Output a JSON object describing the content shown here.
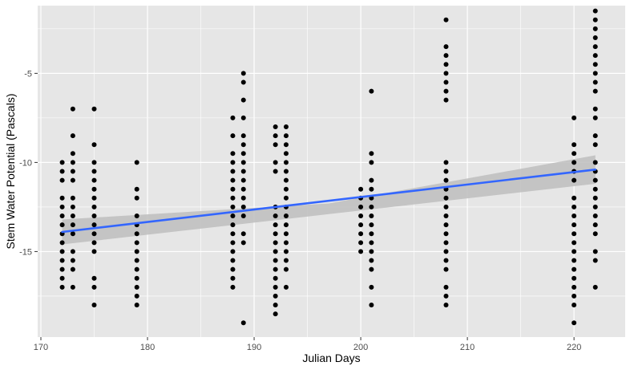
{
  "chart_data": {
    "type": "scatter",
    "xlabel": "Julian Days",
    "ylabel": "Stem Water Potential (Pascals)",
    "xlim": [
      169.7,
      224.8
    ],
    "ylim": [
      -19.8,
      -1.2
    ],
    "x_ticks": [
      170,
      180,
      190,
      200,
      210,
      220
    ],
    "y_ticks": [
      -5,
      -10,
      -15
    ],
    "grid": true,
    "colors": {
      "panel": "#e6e6e6",
      "grid": "#ffffff",
      "points": "#000000",
      "fit_line": "#3366ff",
      "ribbon": "#bdbdbd"
    },
    "fit_line": {
      "x": [
        172,
        222
      ],
      "y": [
        -13.9,
        -10.4
      ]
    },
    "confidence_band": {
      "x": [
        172,
        197,
        222
      ],
      "lower": [
        -14.6,
        -12.9,
        -11.2
      ],
      "upper": [
        -13.2,
        -12.3,
        -9.6
      ]
    },
    "series": [
      {
        "x": 172,
        "values": [
          -10,
          -10.5,
          -11,
          -12,
          -12.5,
          -13,
          -13.5,
          -14,
          -14.5,
          -15,
          -15.5,
          -16,
          -16.5,
          -17
        ]
      },
      {
        "x": 173,
        "values": [
          -7,
          -8.5,
          -9.5,
          -10,
          -10.5,
          -11,
          -12,
          -12.5,
          -13,
          -13.5,
          -14,
          -15,
          -15.5,
          -16,
          -17
        ]
      },
      {
        "x": 175,
        "values": [
          -7,
          -9,
          -10,
          -10.5,
          -11,
          -11.5,
          -12,
          -12.5,
          -13,
          -13.5,
          -14,
          -14.5,
          -15,
          -16.5,
          -17,
          -18
        ]
      },
      {
        "x": 179,
        "values": [
          -10,
          -11.5,
          -12,
          -13,
          -13.5,
          -14,
          -14.5,
          -15,
          -15.5,
          -16,
          -16.5,
          -17,
          -17.5,
          -18
        ]
      },
      {
        "x": 188,
        "values": [
          -7.5,
          -8.5,
          -9.5,
          -10,
          -10.5,
          -11,
          -11.5,
          -12,
          -12.5,
          -13,
          -13.5,
          -14,
          -14.5,
          -15,
          -15.5,
          -16,
          -16.5,
          -17
        ]
      },
      {
        "x": 189,
        "values": [
          -5,
          -5.5,
          -6.5,
          -7.5,
          -8.5,
          -9,
          -9.5,
          -10,
          -10.5,
          -11,
          -11.5,
          -12,
          -12.5,
          -13,
          -14,
          -14.5,
          -19
        ]
      },
      {
        "x": 192,
        "values": [
          -8,
          -8.5,
          -9,
          -10,
          -10.5,
          -12.5,
          -13,
          -13.5,
          -14,
          -14.5,
          -15,
          -15.5,
          -16,
          -16.5,
          -17,
          -17.5,
          -18,
          -18.5
        ]
      },
      {
        "x": 193,
        "values": [
          -8,
          -8.5,
          -9,
          -9.5,
          -10,
          -10.5,
          -11,
          -11.5,
          -12,
          -12.5,
          -13,
          -13.5,
          -14,
          -14.5,
          -15,
          -15.5,
          -16,
          -17
        ]
      },
      {
        "x": 200,
        "values": [
          -11.5,
          -12,
          -12.5,
          -13,
          -13.5,
          -14,
          -14.5,
          -15
        ]
      },
      {
        "x": 201,
        "values": [
          -6,
          -9.5,
          -10,
          -11,
          -11.5,
          -12,
          -12.5,
          -13,
          -13.5,
          -14,
          -14.5,
          -15,
          -15.5,
          -16,
          -17,
          -18
        ]
      },
      {
        "x": 208,
        "values": [
          -2,
          -3.5,
          -4,
          -4.5,
          -5,
          -5.5,
          -6,
          -6.5,
          -10,
          -10.5,
          -11,
          -11.5,
          -12,
          -12.5,
          -13,
          -13.5,
          -14,
          -14.5,
          -15,
          -15.5,
          -16,
          -17,
          -17.5,
          -18
        ]
      },
      {
        "x": 220,
        "values": [
          -7.5,
          -9,
          -9.5,
          -10,
          -10.5,
          -11,
          -12,
          -12.5,
          -13,
          -13.5,
          -14,
          -14.5,
          -15,
          -15.5,
          -16,
          -16.5,
          -17,
          -17.5,
          -18,
          -19
        ]
      },
      {
        "x": 222,
        "values": [
          -1.5,
          -2,
          -2.5,
          -3,
          -3.5,
          -4,
          -4.5,
          -5,
          -5.5,
          -6,
          -7,
          -7.5,
          -8.5,
          -9,
          -10,
          -10.5,
          -11,
          -11.5,
          -12,
          -12.5,
          -13,
          -13.5,
          -14,
          -15,
          -15.5,
          -17
        ]
      }
    ]
  }
}
